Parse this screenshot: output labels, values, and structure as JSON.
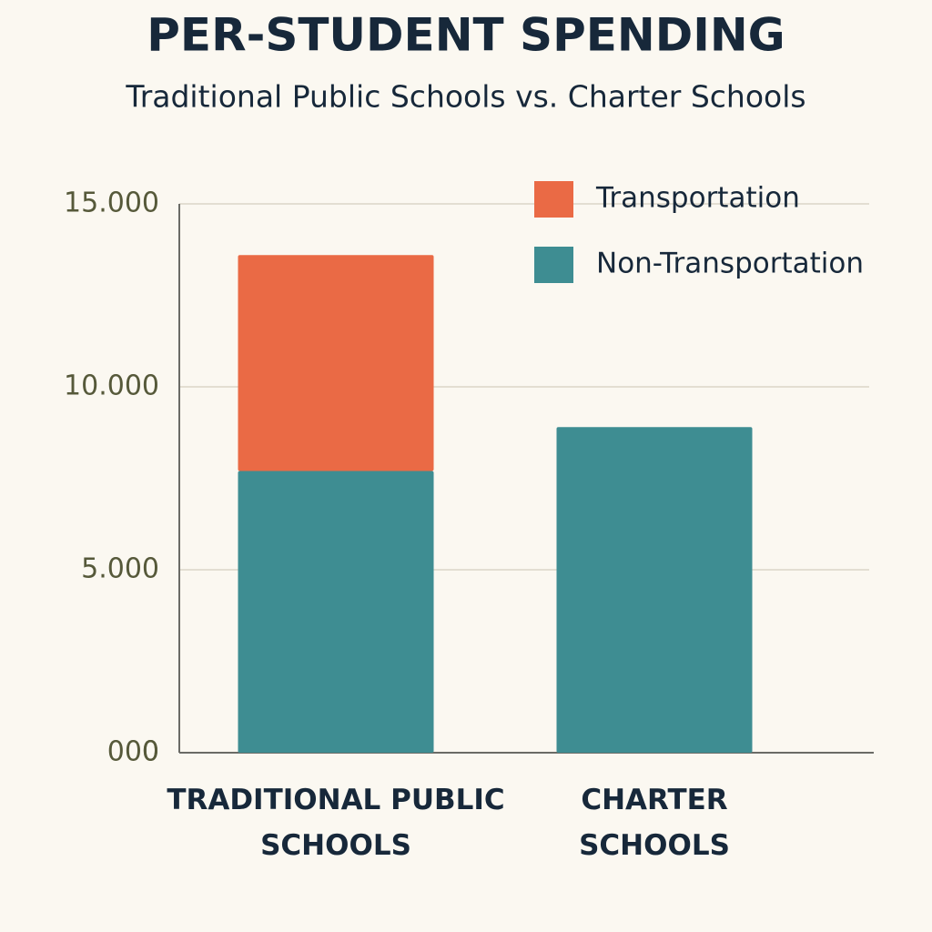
{
  "chart_data": {
    "type": "stacked_bar",
    "title": "PER-STUDENT SPENDING",
    "subtitle": "Traditional Public Schools vs. Charter Schools",
    "categories": [
      "TRADITIONAL PUBLIC SCHOOLS",
      "CHARTER SCHOOLS"
    ],
    "series": [
      {
        "name": "Non-Transportation",
        "color": "#3e8d92",
        "values": [
          7700,
          8900
        ]
      },
      {
        "name": "Transportation",
        "color": "#ea6a45",
        "values": [
          5900,
          0
        ]
      }
    ],
    "legend_order": [
      "Transportation",
      "Non-Transportation"
    ],
    "legend": "upper right",
    "ylim": [
      0,
      15000
    ],
    "yticks": [
      0,
      {
        "value": 0,
        "label": "000"
      },
      {
        "value": 5000,
        "label": "5.000"
      },
      {
        "value": 10000,
        "label": "10.000"
      },
      {
        "value": 15000,
        "label": "15.000"
      }
    ],
    "grid": true
  }
}
